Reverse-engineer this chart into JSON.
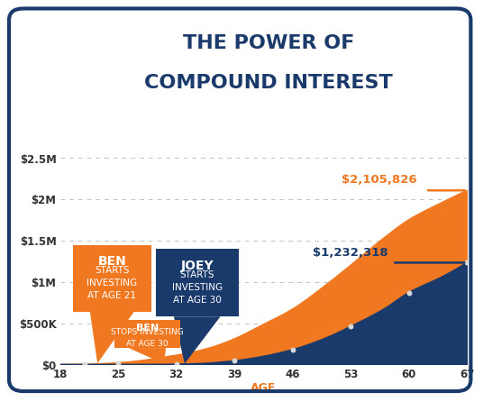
{
  "title_line1": "THE POWER OF",
  "title_line2": "COMPOUND INTEREST",
  "title_color": "#1a3a6b",
  "background_color": "#ffffff",
  "border_color": "#1a3a6b",
  "orange_color": "#f07820",
  "navy_color": "#1a3a6b",
  "gray_line_color": "#bbbbbb",
  "ages_ben": [
    18,
    21,
    22,
    24,
    26,
    28,
    30,
    33,
    36,
    39,
    42,
    46,
    50,
    53,
    57,
    60,
    64,
    67
  ],
  "ben_values": [
    0,
    2000,
    5000,
    14000,
    28000,
    50000,
    80000,
    130000,
    200000,
    310000,
    460000,
    670000,
    960000,
    1200000,
    1530000,
    1750000,
    1960000,
    2105826
  ],
  "ages_joey": [
    18,
    30,
    32,
    35,
    39,
    42,
    46,
    50,
    53,
    57,
    60,
    64,
    67
  ],
  "joey_values": [
    0,
    0,
    3000,
    12000,
    45000,
    90000,
    180000,
    320000,
    460000,
    670000,
    870000,
    1060000,
    1232318
  ],
  "xlim": [
    18,
    67
  ],
  "ylim": [
    0,
    2750000
  ],
  "yticks": [
    0,
    500000,
    1000000,
    1500000,
    2000000,
    2500000
  ],
  "ytick_labels": [
    "$0",
    "$500K",
    "$1M",
    "$1.5M",
    "$2M",
    "$2.5M"
  ],
  "xticks": [
    18,
    25,
    32,
    39,
    46,
    53,
    60,
    67
  ],
  "xlabel": "AGE",
  "ben_final_label": "$2,105,826",
  "joey_final_label": "$1,232,318",
  "joey_final_value": 1232318,
  "ben_final_value": 2105826,
  "dot_color_light": "#d8d8d8",
  "dot_color_navy": "#3a5a9b"
}
